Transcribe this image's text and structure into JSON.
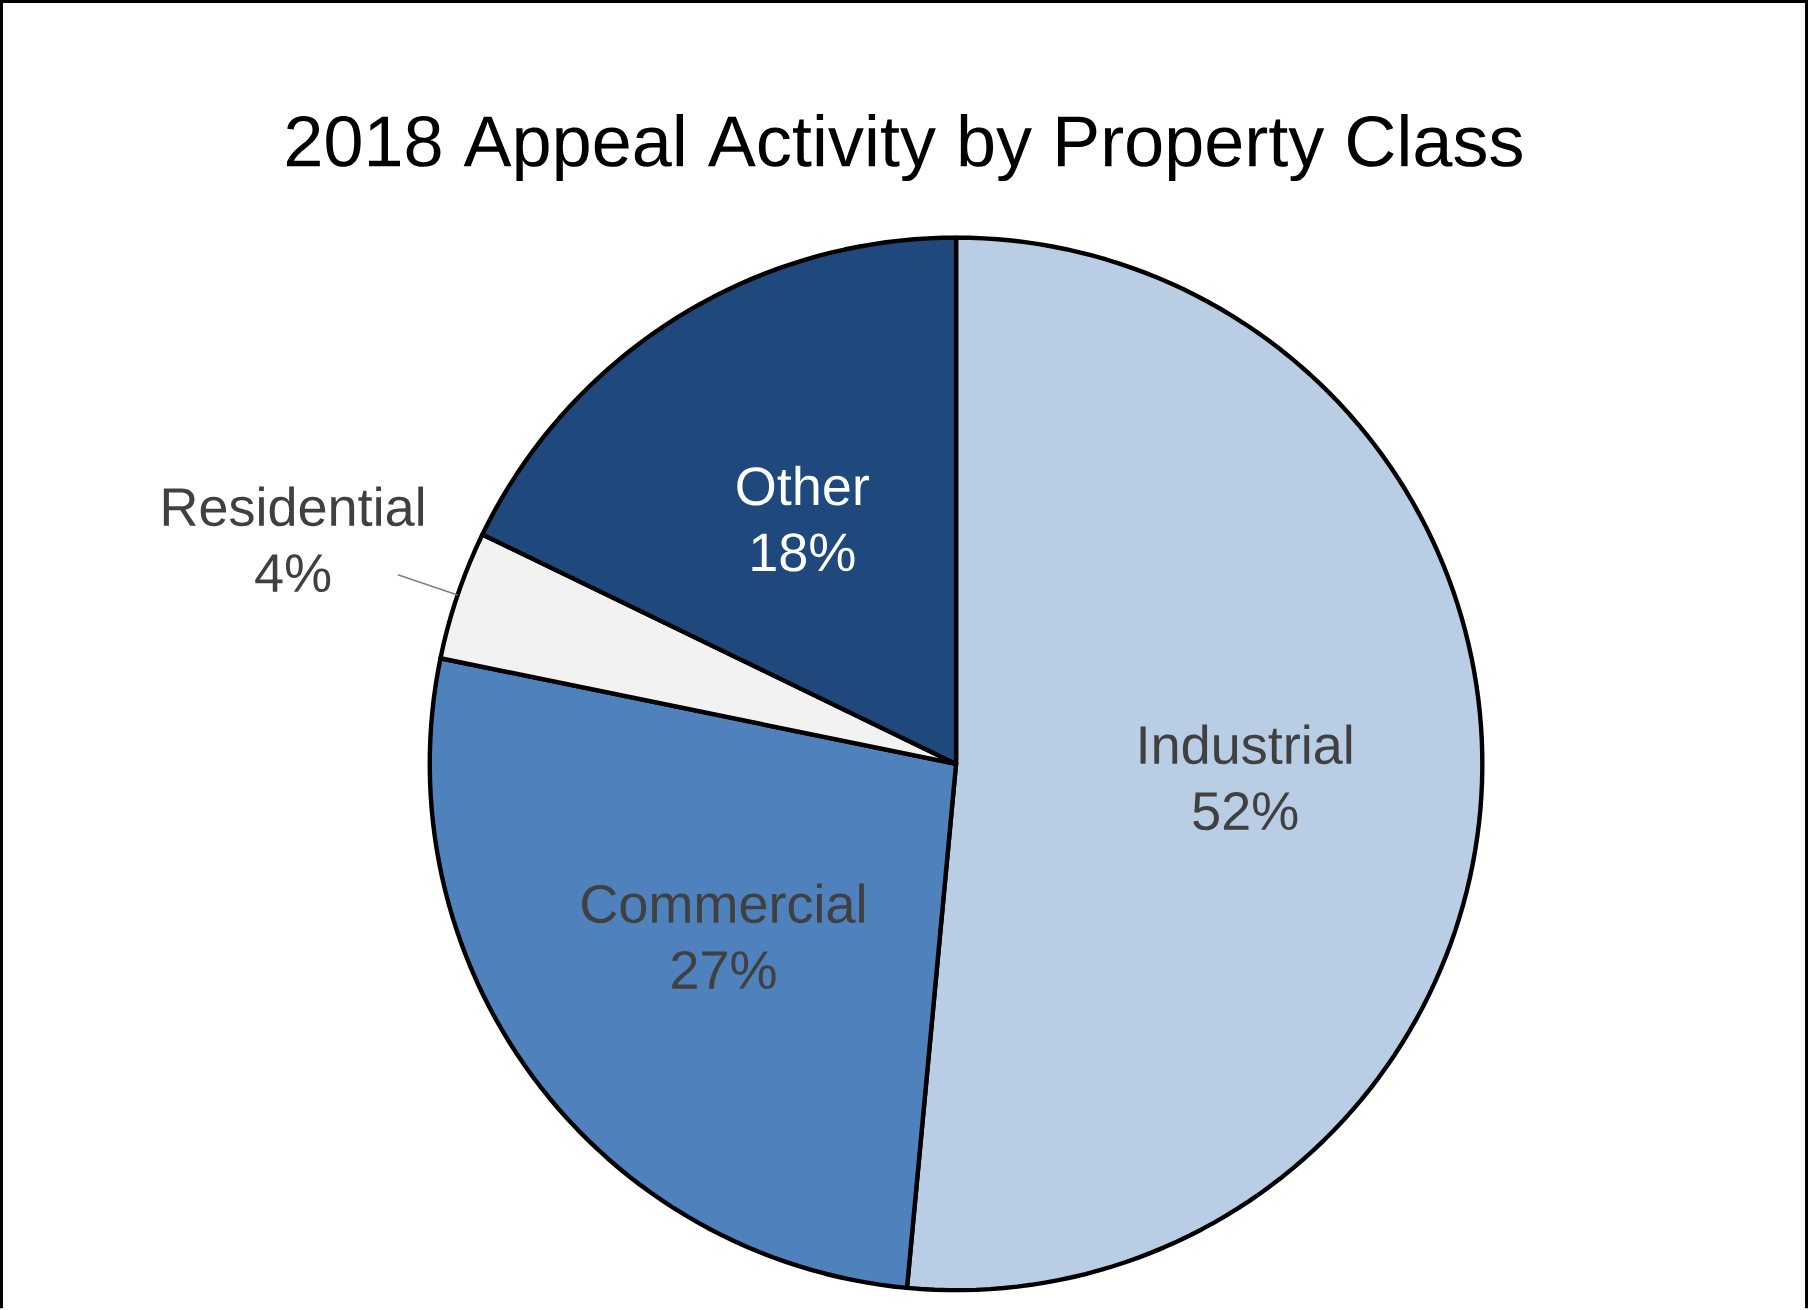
{
  "chart_data": {
    "type": "pie",
    "title": "2018 Appeal Activity by Property Class",
    "categories": [
      "Industrial",
      "Commercial",
      "Residential",
      "Other"
    ],
    "values": [
      52,
      27,
      4,
      18
    ],
    "value_labels": [
      "52%",
      "27%",
      "4%",
      "18%"
    ],
    "colors": [
      "#b9cde5",
      "#4f81bd",
      "#f2f2f2",
      "#1f497d"
    ]
  }
}
